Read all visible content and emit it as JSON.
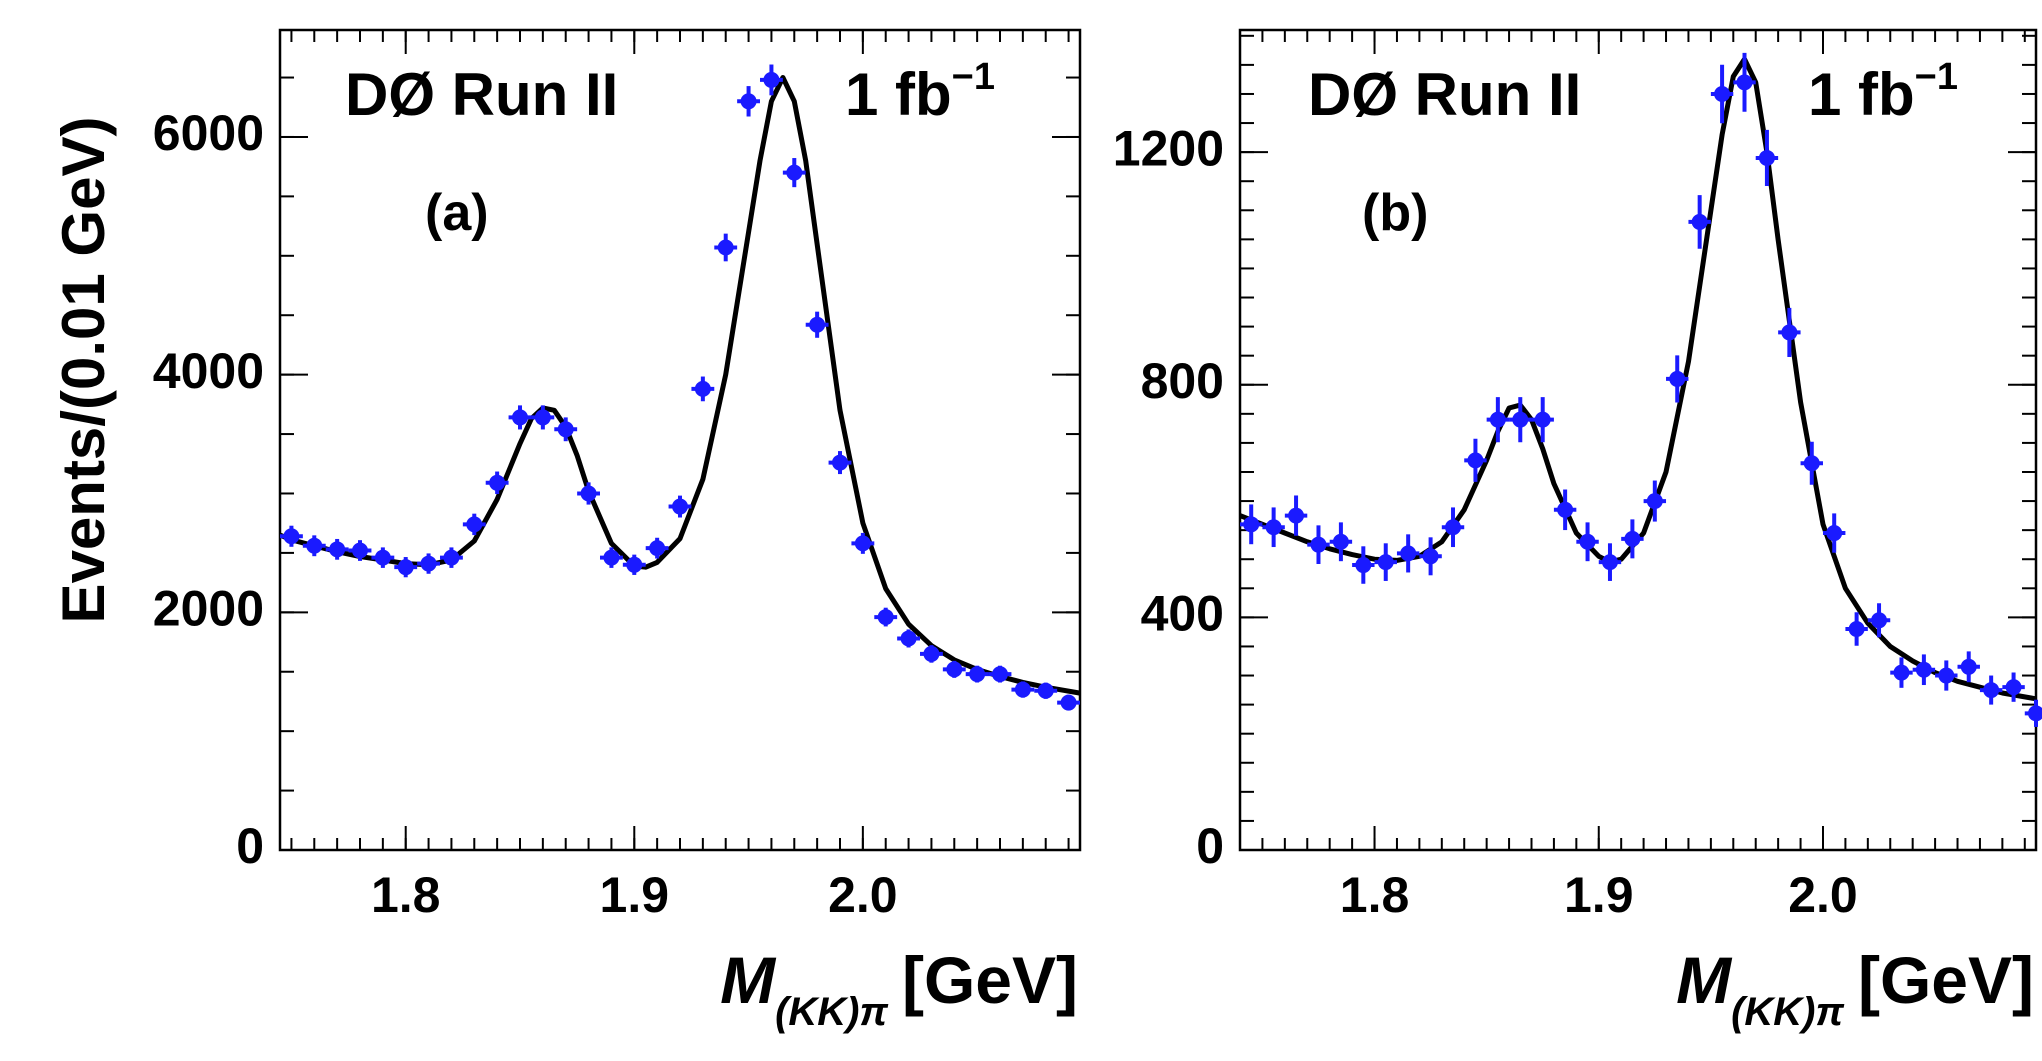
{
  "y_axis_title": "Events/(0.01 GeV)",
  "chart_data": [
    {
      "type": "scatter",
      "panel_label": "(a)",
      "experiment_label": "DØ  Run II",
      "luminosity_label": "1 fb",
      "luminosity_exponent": "−1",
      "xlabel": "M",
      "xlabel_subscript": "(KK)π",
      "xlabel_unit": "[GeV]",
      "ylabel": "Events/(0.01 GeV)",
      "xlim": [
        1.745,
        2.095
      ],
      "ylim": [
        0,
        6900
      ],
      "x_ticks": [
        "1.8",
        "1.9",
        "2.0"
      ],
      "y_ticks": [
        "0",
        "2000",
        "4000",
        "6000"
      ],
      "x_tick_values": [
        1.8,
        1.9,
        2.0
      ],
      "y_tick_values": [
        0,
        2000,
        4000,
        6000
      ],
      "x_minor_step": 0.01,
      "y_minor_step": 500,
      "series": [
        {
          "x": [
            1.75,
            1.76,
            1.77,
            1.78,
            1.79,
            1.8,
            1.81,
            1.82,
            1.83,
            1.84,
            1.85,
            1.86,
            1.87,
            1.88,
            1.89,
            1.9,
            1.91,
            1.92,
            1.93,
            1.94,
            1.95,
            1.96,
            1.97,
            1.98,
            1.99,
            2.0,
            2.01,
            2.02,
            2.03,
            2.04,
            2.05,
            2.06,
            2.07,
            2.08,
            2.09
          ],
          "values": [
            2640,
            2560,
            2530,
            2520,
            2460,
            2380,
            2410,
            2460,
            2740,
            3090,
            3640,
            3640,
            3540,
            3000,
            2460,
            2400,
            2540,
            2890,
            3880,
            5070,
            6300,
            6480,
            5700,
            4420,
            3260,
            2580,
            1960,
            1780,
            1650,
            1520,
            1480,
            1480,
            1350,
            1340,
            1240
          ]
        }
      ],
      "fit_curve": {
        "x": [
          1.745,
          1.75,
          1.76,
          1.77,
          1.78,
          1.79,
          1.8,
          1.81,
          1.82,
          1.83,
          1.84,
          1.85,
          1.855,
          1.86,
          1.865,
          1.87,
          1.875,
          1.88,
          1.89,
          1.9,
          1.905,
          1.91,
          1.92,
          1.93,
          1.94,
          1.95,
          1.955,
          1.96,
          1.965,
          1.97,
          1.975,
          1.98,
          1.99,
          2.0,
          2.01,
          2.02,
          2.03,
          2.04,
          2.05,
          2.06,
          2.07,
          2.08,
          2.095
        ],
        "values": [
          2650,
          2610,
          2560,
          2510,
          2470,
          2440,
          2410,
          2400,
          2440,
          2600,
          2950,
          3420,
          3630,
          3720,
          3700,
          3560,
          3320,
          3020,
          2580,
          2390,
          2380,
          2420,
          2620,
          3120,
          4000,
          5200,
          5800,
          6300,
          6500,
          6300,
          5800,
          5100,
          3700,
          2750,
          2200,
          1900,
          1720,
          1600,
          1520,
          1460,
          1410,
          1370,
          1320
        ]
      }
    },
    {
      "type": "scatter",
      "panel_label": "(b)",
      "experiment_label": "DØ  Run II",
      "luminosity_label": "1 fb",
      "luminosity_exponent": "−1",
      "xlabel": "M",
      "xlabel_subscript": "(KK)π",
      "xlabel_unit": "[GeV]",
      "ylabel": "",
      "xlim": [
        1.74,
        2.095
      ],
      "ylim": [
        0,
        1410
      ],
      "x_ticks": [
        "1.8",
        "1.9",
        "2.0"
      ],
      "y_ticks": [
        "0",
        "400",
        "800",
        "1200"
      ],
      "x_tick_values": [
        1.8,
        1.9,
        2.0
      ],
      "y_tick_values": [
        0,
        400,
        800,
        1200
      ],
      "x_minor_step": 0.01,
      "y_minor_step": 50,
      "series": [
        {
          "x": [
            1.745,
            1.755,
            1.765,
            1.775,
            1.785,
            1.795,
            1.805,
            1.815,
            1.825,
            1.835,
            1.845,
            1.855,
            1.865,
            1.875,
            1.885,
            1.895,
            1.905,
            1.915,
            1.925,
            1.935,
            1.945,
            1.955,
            1.965,
            1.975,
            1.985,
            1.995,
            2.005,
            2.015,
            2.025,
            2.035,
            2.045,
            2.055,
            2.065,
            2.075,
            2.085,
            2.095
          ],
          "values": [
            560,
            555,
            575,
            525,
            530,
            490,
            495,
            510,
            505,
            555,
            670,
            740,
            740,
            740,
            585,
            530,
            495,
            535,
            600,
            810,
            1080,
            1300,
            1320,
            1190,
            890,
            665,
            545,
            380,
            395,
            305,
            310,
            300,
            315,
            275,
            280,
            235
          ]
        }
      ],
      "fit_curve": {
        "x": [
          1.74,
          1.75,
          1.76,
          1.77,
          1.78,
          1.79,
          1.8,
          1.81,
          1.82,
          1.83,
          1.84,
          1.85,
          1.855,
          1.86,
          1.865,
          1.87,
          1.875,
          1.88,
          1.89,
          1.9,
          1.905,
          1.91,
          1.92,
          1.93,
          1.94,
          1.95,
          1.955,
          1.96,
          1.965,
          1.97,
          1.975,
          1.98,
          1.99,
          2.0,
          2.01,
          2.02,
          2.03,
          2.04,
          2.05,
          2.06,
          2.07,
          2.08,
          2.095
        ],
        "values": [
          575,
          560,
          545,
          530,
          518,
          508,
          500,
          498,
          505,
          530,
          585,
          670,
          720,
          760,
          765,
          740,
          690,
          630,
          545,
          505,
          495,
          500,
          545,
          650,
          840,
          1100,
          1230,
          1330,
          1360,
          1320,
          1200,
          1050,
          770,
          560,
          450,
          390,
          350,
          325,
          305,
          290,
          280,
          270,
          260
        ]
      }
    }
  ]
}
